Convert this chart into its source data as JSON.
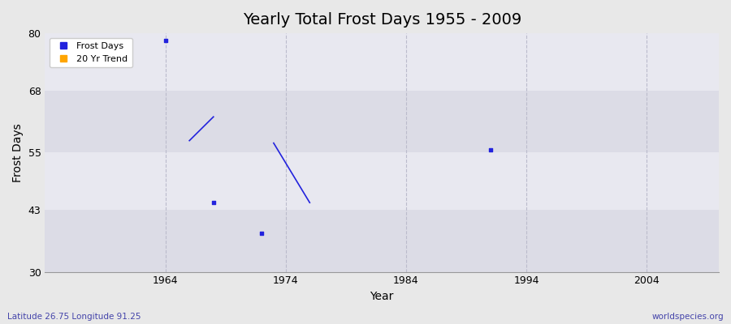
{
  "title": "Yearly Total Frost Days 1955 - 2009",
  "xlabel": "Year",
  "ylabel": "Frost Days",
  "footnote_left": "Latitude 26.75 Longitude 91.25",
  "footnote_right": "worldspecies.org",
  "xlim": [
    1954,
    2010
  ],
  "ylim": [
    30,
    80
  ],
  "yticks": [
    30,
    43,
    55,
    68,
    80
  ],
  "xticks": [
    1964,
    1974,
    1984,
    1994,
    2004
  ],
  "fig_bg_color": "#e8e8e8",
  "plot_bg_color": "#e8e8ee",
  "grid_color": "#bbbbcc",
  "scatter_color": "#2222dd",
  "trend_color": "#2222dd",
  "scatter_points": [
    [
      1964,
      78.5
    ],
    [
      1968,
      44.5
    ],
    [
      1972,
      38.0
    ],
    [
      1991,
      55.5
    ]
  ],
  "trend_segments": [
    [
      [
        1966,
        57.5
      ],
      [
        1968,
        62.5
      ]
    ],
    [
      [
        1973,
        57.0
      ],
      [
        1976,
        44.5
      ]
    ]
  ],
  "legend_entries": [
    {
      "label": "Frost Days",
      "color": "#2222dd",
      "marker": "s"
    },
    {
      "label": "20 Yr Trend",
      "color": "#ffa500",
      "marker": "s"
    }
  ],
  "hband_colors": [
    "#e0e0e8",
    "#eaeaf2"
  ],
  "hband_ranges": [
    [
      30,
      43
    ],
    [
      43,
      55
    ],
    [
      55,
      68
    ],
    [
      68,
      80
    ]
  ]
}
